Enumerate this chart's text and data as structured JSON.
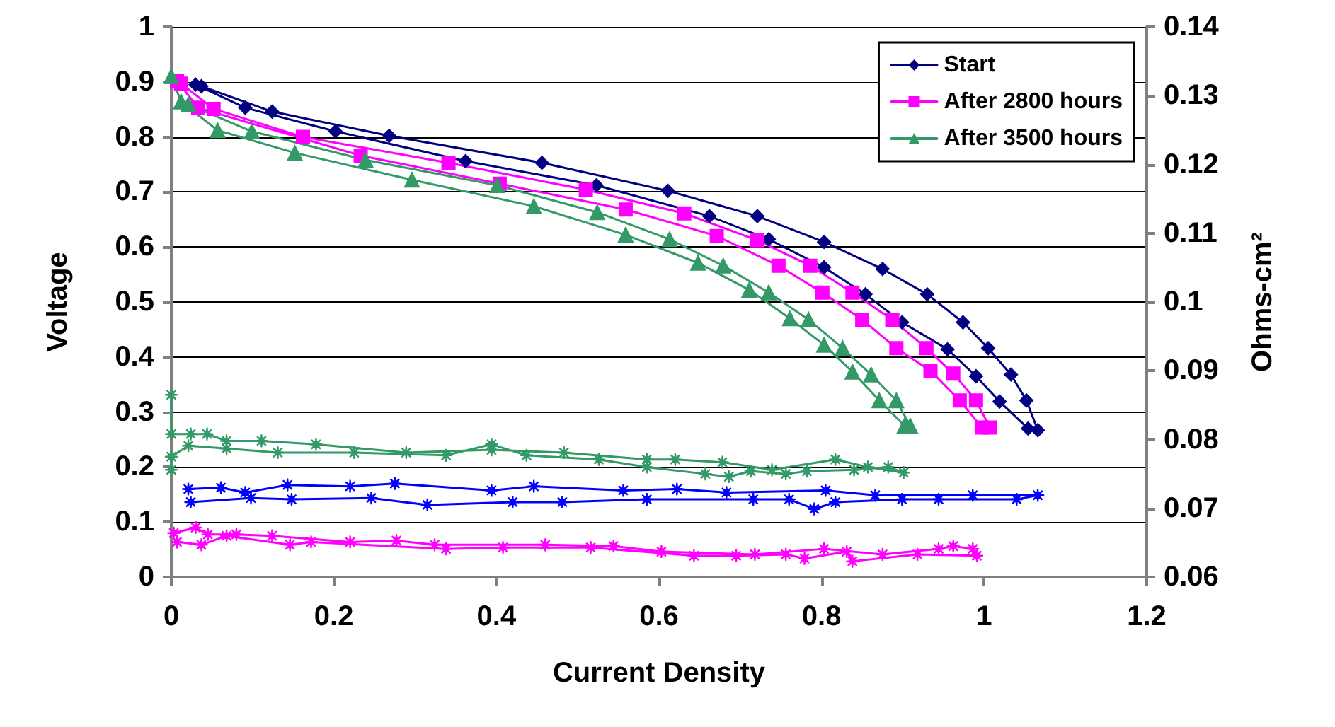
{
  "chart_data": {
    "type": "line",
    "xlabel": "Current Density",
    "ylabel": "Voltage",
    "y2label": "Ohms-cm²",
    "xlim": [
      0,
      1.2
    ],
    "xticks": [
      0,
      0.2,
      0.4,
      0.6,
      0.8,
      1,
      1.2
    ],
    "ylim": [
      0,
      1
    ],
    "yticks": [
      0,
      0.1,
      0.2,
      0.3,
      0.4,
      0.5,
      0.6,
      0.7,
      0.8,
      0.9,
      1
    ],
    "y2lim": [
      0.06,
      0.14
    ],
    "y2ticks": [
      0.06,
      0.07,
      0.08,
      0.09,
      0.1,
      0.11,
      0.12,
      0.13,
      0.14
    ],
    "grid": "y",
    "legend": "top right",
    "line_style": "solid",
    "series": [
      {
        "name": "Start",
        "color": "#000080",
        "marker": "diamond",
        "x": [
          0.03,
          0.091,
          0.202,
          0.362,
          0.523,
          0.662,
          0.735,
          0.803,
          0.854,
          0.899,
          0.955,
          0.99,
          1.019,
          1.054,
          1.066,
          1.052,
          1.033,
          1.005,
          0.974,
          0.93,
          0.875,
          0.803,
          0.721,
          0.611,
          0.456,
          0.268,
          0.124,
          0.037
        ],
        "values": [
          0.895,
          0.853,
          0.81,
          0.756,
          0.712,
          0.656,
          0.614,
          0.563,
          0.514,
          0.463,
          0.414,
          0.365,
          0.319,
          0.27,
          0.267,
          0.321,
          0.368,
          0.416,
          0.463,
          0.514,
          0.56,
          0.609,
          0.656,
          0.702,
          0.753,
          0.802,
          0.846,
          0.892
        ]
      },
      {
        "name": "After 2800 hours",
        "color": "#ff00ff",
        "marker": "square",
        "x": [
          0.007,
          0.033,
          0.233,
          0.404,
          0.559,
          0.671,
          0.747,
          0.801,
          0.85,
          0.892,
          0.934,
          0.97,
          0.997,
          1.007,
          0.99,
          0.962,
          0.929,
          0.887,
          0.838,
          0.786,
          0.721,
          0.631,
          0.51,
          0.341,
          0.162,
          0.052,
          0.012
        ],
        "values": [
          0.902,
          0.853,
          0.766,
          0.715,
          0.668,
          0.62,
          0.566,
          0.517,
          0.468,
          0.416,
          0.375,
          0.321,
          0.272,
          0.272,
          0.321,
          0.37,
          0.416,
          0.468,
          0.517,
          0.566,
          0.612,
          0.661,
          0.704,
          0.753,
          0.8,
          0.851,
          0.897
        ]
      },
      {
        "name": "After 3500 hours",
        "color": "#339966",
        "marker": "triangle",
        "x": [
          0,
          0.012,
          0.057,
          0.152,
          0.296,
          0.446,
          0.559,
          0.648,
          0.711,
          0.761,
          0.803,
          0.838,
          0.871,
          0.902,
          0.909,
          0.892,
          0.861,
          0.826,
          0.784,
          0.735,
          0.679,
          0.613,
          0.524,
          0.401,
          0.239,
          0.099,
          0.021
        ],
        "values": [
          0.91,
          0.864,
          0.812,
          0.771,
          0.722,
          0.674,
          0.622,
          0.571,
          0.522,
          0.47,
          0.422,
          0.373,
          0.321,
          0.275,
          0.275,
          0.321,
          0.368,
          0.416,
          0.468,
          0.517,
          0.566,
          0.614,
          0.663,
          0.712,
          0.758,
          0.81,
          0.859
        ]
      },
      {
        "color": "#0000ff",
        "marker": "star",
        "axis": "y2",
        "x": [
          0.021,
          0.061,
          0.091,
          0.143,
          0.22,
          0.275,
          0.394,
          0.446,
          0.556,
          0.622,
          0.683,
          0.805,
          0.866,
          0.986,
          1.066,
          1.04,
          0.944,
          0.899,
          0.817,
          0.791,
          0.76,
          0.716,
          0.585,
          0.481,
          0.42,
          0.315,
          0.246,
          0.148,
          0.098,
          0.024
        ],
        "values": [
          0.0728,
          0.073,
          0.0723,
          0.0734,
          0.0732,
          0.0736,
          0.0726,
          0.0732,
          0.0726,
          0.0728,
          0.0723,
          0.0726,
          0.0719,
          0.0719,
          0.0719,
          0.0713,
          0.0713,
          0.0713,
          0.0709,
          0.0699,
          0.0713,
          0.0713,
          0.0713,
          0.0709,
          0.0709,
          0.0705,
          0.0715,
          0.0713,
          0.0715,
          0.0709
        ]
      },
      {
        "color": "#339966",
        "marker": "star",
        "axis": "y2",
        "x": [
          0,
          0,
          0.024,
          0.044,
          0.068,
          0.111,
          0.178,
          0.289,
          0.394,
          0.483,
          0.585,
          0.62,
          0.678,
          0.739,
          0.817,
          0.857,
          0.901,
          0.882,
          0.84,
          0.782,
          0.756,
          0.713,
          0.686,
          0.657,
          0.585,
          0.526,
          0.437,
          0.394,
          0.338,
          0.225,
          0.131,
          0.068,
          0.021,
          0,
          0
        ],
        "values": [
          0.0865,
          0.0808,
          0.0808,
          0.0808,
          0.0798,
          0.0798,
          0.0793,
          0.0781,
          0.0785,
          0.0781,
          0.0771,
          0.0771,
          0.0767,
          0.0756,
          0.0771,
          0.076,
          0.0752,
          0.076,
          0.0756,
          0.0754,
          0.075,
          0.0754,
          0.0746,
          0.075,
          0.076,
          0.0771,
          0.0777,
          0.0793,
          0.0777,
          0.0781,
          0.0781,
          0.0787,
          0.0791,
          0.0775,
          0.0756
        ]
      },
      {
        "color": "#ff00ff",
        "marker": "star",
        "axis": "y2",
        "x": [
          0.003,
          0.03,
          0.045,
          0.08,
          0.124,
          0.22,
          0.277,
          0.324,
          0.46,
          0.544,
          0.603,
          0.718,
          0.803,
          0.875,
          0.944,
          0.962,
          0.986,
          0.991,
          0.918,
          0.838,
          0.831,
          0.779,
          0.756,
          0.695,
          0.643,
          0.516,
          0.408,
          0.338,
          0.172,
          0.146,
          0.068,
          0.037,
          0.007
        ],
        "values": [
          0.0664,
          0.0672,
          0.0662,
          0.0662,
          0.066,
          0.0651,
          0.0653,
          0.0647,
          0.0647,
          0.0645,
          0.0637,
          0.0633,
          0.0641,
          0.0633,
          0.0641,
          0.0645,
          0.0641,
          0.0631,
          0.0633,
          0.0623,
          0.0637,
          0.0627,
          0.0633,
          0.0631,
          0.0631,
          0.0643,
          0.0643,
          0.0641,
          0.0651,
          0.0647,
          0.066,
          0.0647,
          0.0651
        ]
      }
    ]
  }
}
